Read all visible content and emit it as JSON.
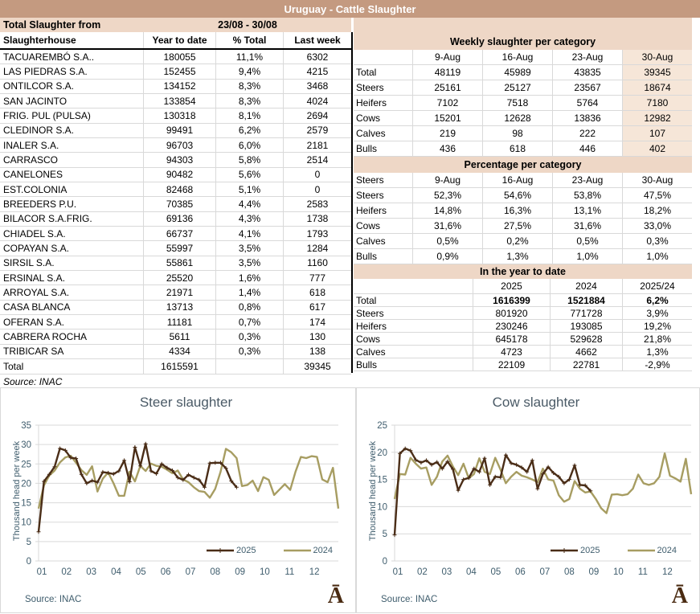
{
  "title": "Uruguay - Cattle Slaughter",
  "period": {
    "label": "Total Slaughter from",
    "range": "23/08 - 30/08"
  },
  "left_table": {
    "columns": [
      "Slaughterhouse",
      "Year to date",
      "% Total",
      "Last week"
    ],
    "rows": [
      [
        "TACUAREMBÓ S.A..",
        "180055",
        "11,1%",
        "6302"
      ],
      [
        "LAS PIEDRAS S.A.",
        "152455",
        "9,4%",
        "4215"
      ],
      [
        "ONTILCOR S.A.",
        "134152",
        "8,3%",
        "3468"
      ],
      [
        "SAN JACINTO",
        "133854",
        "8,3%",
        "4024"
      ],
      [
        "FRIG. PUL (PULSA)",
        "130318",
        "8,1%",
        "2694"
      ],
      [
        "CLEDINOR S.A.",
        "99491",
        "6,2%",
        "2579"
      ],
      [
        "INALER S.A.",
        "96703",
        "6,0%",
        "2181"
      ],
      [
        "CARRASCO",
        "94303",
        "5,8%",
        "2514"
      ],
      [
        "CANELONES",
        "90482",
        "5,6%",
        "0"
      ],
      [
        "EST.COLONIA",
        "82468",
        "5,1%",
        "0"
      ],
      [
        "BREEDERS P.U.",
        "70385",
        "4,4%",
        "2583"
      ],
      [
        "BILACOR S.A.FRIG.",
        "69136",
        "4,3%",
        "1738"
      ],
      [
        "CHIADEL S.A.",
        "66737",
        "4,1%",
        "1793"
      ],
      [
        "COPAYAN S.A.",
        "55997",
        "3,5%",
        "1284"
      ],
      [
        "SIRSIL S.A.",
        "55861",
        "3,5%",
        "1160"
      ],
      [
        "ERSINAL S.A.",
        "25520",
        "1,6%",
        "777"
      ],
      [
        "ARROYAL S.A.",
        "21971",
        "1,4%",
        "618"
      ],
      [
        "CASA BLANCA",
        "13713",
        "0,8%",
        "617"
      ],
      [
        "OFERAN S.A.",
        "11181",
        "0,7%",
        "174"
      ],
      [
        "CABRERA ROCHA",
        "5611",
        "0,3%",
        "130"
      ],
      [
        "TRIBICAR SA",
        "4334",
        "0,3%",
        "138"
      ]
    ],
    "total_row": [
      "Total",
      "1615591",
      "",
      "39345"
    ],
    "source": "Source: INAC"
  },
  "weekly": {
    "title": "Weekly slaughter per category",
    "header": [
      "",
      "9-Aug",
      "16-Aug",
      "23-Aug",
      "30-Aug"
    ],
    "rows": [
      [
        "Total",
        "48119",
        "45989",
        "43835",
        "39345"
      ],
      [
        "Steers",
        "25161",
        "25127",
        "23567",
        "18674"
      ],
      [
        "Heifers",
        "7102",
        "7518",
        "5764",
        "7180"
      ],
      [
        "Cows",
        "15201",
        "12628",
        "13836",
        "12982"
      ],
      [
        "Calves",
        "219",
        "98",
        "222",
        "107"
      ],
      [
        "Bulls",
        "436",
        "618",
        "446",
        "402"
      ]
    ]
  },
  "percentage": {
    "title": "Percentage per category",
    "header": [
      "Steers",
      "9-Aug",
      "16-Aug",
      "23-Aug",
      "30-Aug"
    ],
    "rows": [
      [
        "Steers",
        "52,3%",
        "54,6%",
        "53,8%",
        "47,5%"
      ],
      [
        "Heifers",
        "14,8%",
        "16,3%",
        "13,1%",
        "18,2%"
      ],
      [
        "Cows",
        "31,6%",
        "27,5%",
        "31,6%",
        "33,0%"
      ],
      [
        "Calves",
        "0,5%",
        "0,2%",
        "0,5%",
        "0,3%"
      ],
      [
        "Bulls",
        "0,9%",
        "1,3%",
        "1,0%",
        "1,0%"
      ]
    ]
  },
  "ytd": {
    "title": "In the year to date",
    "header": [
      "",
      "2025",
      "2024",
      "2025/24"
    ],
    "rows": [
      [
        "Total",
        "1616399",
        "1521884",
        "6,2%"
      ],
      [
        "Steers",
        "801920",
        "771728",
        "3,9%"
      ],
      [
        "Heifers",
        "230246",
        "193085",
        "19,2%"
      ],
      [
        "Cows",
        "645178",
        "529628",
        "21,8%"
      ],
      [
        "Calves",
        "4723",
        "4662",
        "1,3%"
      ],
      [
        "Bulls",
        "22109",
        "22781",
        "-2,9%"
      ]
    ],
    "bold_row_index": 0
  },
  "colors": {
    "title_bar": "#c49a80",
    "banner": "#eed7c6",
    "last_week_tint": "#f6e6d8",
    "series_2025": "#4a2d17",
    "series_2024": "#a79d62",
    "grid_line": "#d9d9d9",
    "axis_text": "#3f5d6d",
    "chart_title": "#4a5a66",
    "logo_brown": "#4a2b12"
  },
  "chart_data": [
    {
      "type": "line",
      "title": "Steer slaughter",
      "ylabel": "Thousand head per  week",
      "xlabel": "",
      "ylim": [
        0,
        35
      ],
      "ytick_step": 5,
      "x_tick_labels": [
        "01",
        "02",
        "03",
        "04",
        "05",
        "06",
        "07",
        "08",
        "09",
        "10",
        "11",
        "12"
      ],
      "grid": "horizontal",
      "legend_position": "inside-bottom-right",
      "source": "Source: INAC",
      "logo": "Ā",
      "series": [
        {
          "name": "2025",
          "color": "#4a2d17",
          "marker": "plus",
          "values": [
            7.5,
            20.5,
            22.3,
            24.3,
            29.0,
            28.5,
            26.6,
            26.4,
            22.3,
            20.0,
            20.7,
            20.3,
            22.9,
            22.7,
            22.4,
            23.2,
            25.9,
            20.4,
            29.3,
            24.5,
            30.2,
            23.2,
            22.5,
            25.0,
            24.0,
            23.3,
            21.5,
            20.9,
            22.2,
            21.5,
            20.9,
            19.0,
            25.2,
            25.3,
            25.3,
            23.9,
            20.6,
            19.0
          ]
        },
        {
          "name": "2024",
          "color": "#a79d62",
          "marker": "none",
          "values": [
            13.5,
            19.5,
            22.0,
            23.3,
            25.4,
            26.7,
            27.1,
            25.3,
            23.4,
            22.2,
            24.4,
            17.9,
            21.2,
            22.8,
            20.0,
            16.8,
            16.8,
            23.0,
            20.5,
            24.5,
            23.2,
            25.1,
            24.5,
            24.3,
            23.5,
            22.6,
            23.3,
            21.0,
            20.3,
            19.0,
            18.0,
            17.8,
            16.3,
            18.6,
            23.0,
            28.9,
            28.0,
            26.5,
            19.3,
            19.6,
            20.7,
            18.0,
            21.6,
            20.9,
            17.0,
            18.4,
            19.8,
            18.3,
            23.0,
            26.8,
            26.5,
            27.0,
            26.8,
            21.0,
            20.3,
            24.0,
            13.5
          ]
        }
      ]
    },
    {
      "type": "line",
      "title": "Cow slaughter",
      "ylabel": "Thousand head per  week",
      "xlabel": "",
      "ylim": [
        0,
        25
      ],
      "ytick_step": 5,
      "x_tick_labels": [
        "01",
        "02",
        "03",
        "04",
        "05",
        "06",
        "07",
        "08",
        "09",
        "10",
        "11",
        "12"
      ],
      "grid": "horizontal",
      "legend_position": "inside-bottom-right",
      "source": "Source: INAC",
      "logo": "Ā",
      "series": [
        {
          "name": "2025",
          "color": "#4a2d17",
          "marker": "plus",
          "values": [
            4.8,
            19.8,
            20.7,
            20.3,
            18.6,
            18.1,
            18.5,
            17.7,
            18.2,
            17.0,
            18.3,
            16.9,
            13.0,
            15.0,
            15.3,
            17.0,
            16.4,
            18.9,
            14.0,
            15.5,
            15.4,
            19.5,
            18.0,
            17.7,
            17.2,
            16.4,
            18.5,
            13.3,
            16.0,
            17.3,
            16.2,
            15.5,
            14.3,
            15.0,
            17.6,
            14.0,
            13.9,
            12.9
          ]
        },
        {
          "name": "2024",
          "color": "#a79d62",
          "marker": "none",
          "values": [
            11.4,
            16.0,
            15.9,
            19.0,
            17.9,
            17.0,
            17.2,
            14.0,
            15.5,
            18.3,
            19.4,
            17.4,
            15.8,
            17.9,
            15.2,
            16.0,
            18.9,
            16.4,
            16.0,
            19.0,
            16.8,
            14.3,
            15.5,
            16.4,
            15.7,
            15.4,
            15.0,
            14.5,
            17.0,
            15.0,
            14.8,
            12.1,
            10.9,
            11.4,
            14.7,
            13.3,
            12.6,
            12.8,
            11.4,
            9.7,
            8.8,
            12.2,
            12.3,
            12.1,
            12.3,
            13.3,
            15.9,
            14.3,
            14.0,
            14.3,
            15.5,
            19.8,
            15.7,
            15.2,
            14.6,
            18.8,
            12.3
          ]
        }
      ]
    }
  ]
}
